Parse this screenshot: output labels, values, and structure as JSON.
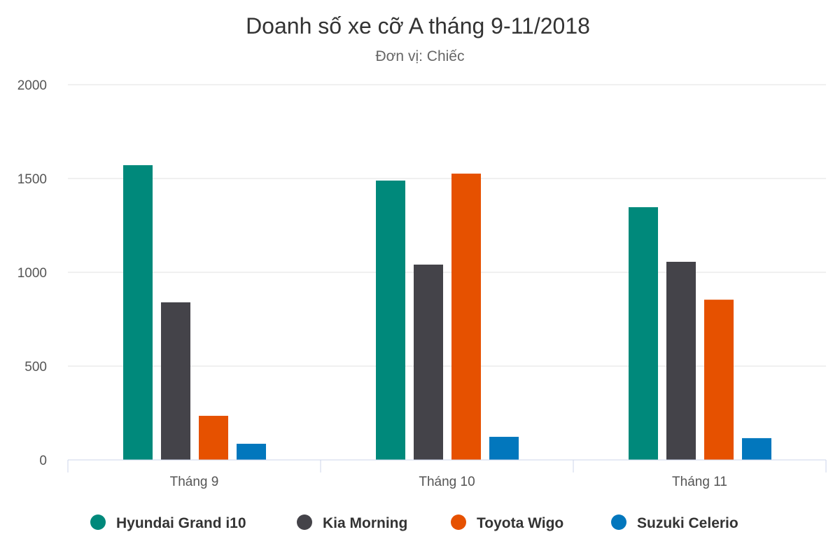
{
  "chart_data": {
    "type": "bar",
    "title": "Doanh số xe cỡ A tháng 9-11/2018",
    "subtitle": "Đơn vị: Chiếc",
    "xlabel": "",
    "ylabel": "",
    "ylim": [
      0,
      2000
    ],
    "yticks": [
      "0",
      "500",
      "1000",
      "1500",
      "2000"
    ],
    "grid": true,
    "legend_position": "bottom",
    "categories": [
      "Tháng 9",
      "Tháng 10",
      "Tháng 11"
    ],
    "series": [
      {
        "name": "Hyundai Grand i10",
        "color": "#00897b",
        "values": [
          1571,
          1489,
          1347
        ]
      },
      {
        "name": "Kia Morning",
        "color": "#444349",
        "values": [
          840,
          1041,
          1056
        ]
      },
      {
        "name": "Toyota Wigo",
        "color": "#e65100",
        "values": [
          235,
          1526,
          854
        ]
      },
      {
        "name": "Suzuki Celerio",
        "color": "#0277bd",
        "values": [
          86,
          123,
          116
        ]
      }
    ]
  }
}
